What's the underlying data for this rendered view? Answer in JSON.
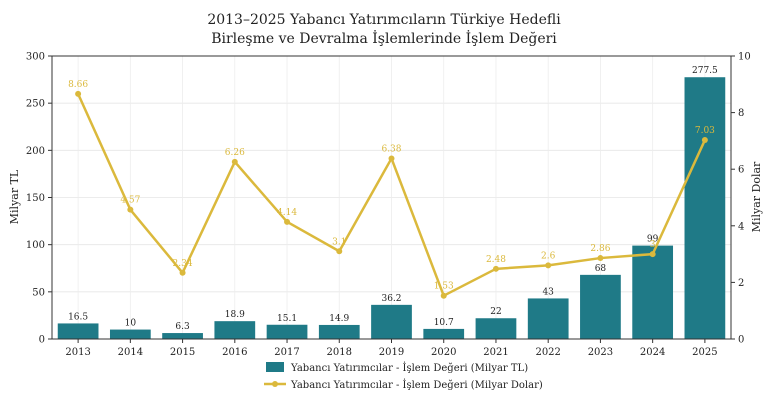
{
  "chart_data": {
    "type": "bar",
    "title_line1": "2013–2025 Yabancı Yatırımcıların Türkiye Hedefli",
    "title_line2": "Birleşme ve Devralma İşlemlerinde İşlem Değeri",
    "categories": [
      "2013",
      "2014",
      "2015",
      "2016",
      "2017",
      "2018",
      "2019",
      "2020",
      "2021",
      "2022",
      "2023",
      "2024",
      "2025"
    ],
    "series": [
      {
        "name": "Yabancı Yatırımcılar - İşlem Değeri (Milyar TL)",
        "type": "bar",
        "axis": "left",
        "color": "#1f7a87",
        "values": [
          16.5,
          10,
          6.3,
          18.9,
          15.1,
          14.9,
          36.2,
          10.7,
          22,
          43,
          68,
          99,
          277.5
        ],
        "labels": [
          "16.5",
          "10",
          "6.3",
          "18.9",
          "15.1",
          "14.9",
          "36.2",
          "10.7",
          "22",
          "43",
          "68",
          "99",
          "277.5"
        ]
      },
      {
        "name": "Yabancı Yatırımcılar - İşlem Değeri (Milyar Dolar)",
        "type": "line",
        "axis": "right",
        "color": "#dbb93c",
        "values": [
          8.66,
          4.57,
          2.34,
          6.26,
          4.14,
          3.1,
          6.38,
          1.53,
          2.48,
          2.6,
          2.86,
          3.0,
          7.03
        ],
        "labels": [
          "8.66",
          "4.57",
          "2.34",
          "6.26",
          "4.14",
          "3.1",
          "6.38",
          "1.53",
          "2.48",
          "2.6",
          "2.86",
          "3",
          "7.03"
        ]
      }
    ],
    "ylabel": "Milyar TL",
    "y2label": "Milyar Dolar",
    "ylim": [
      0,
      300
    ],
    "y2lim": [
      0,
      10
    ],
    "yticks": [
      "0",
      "50",
      "100",
      "150",
      "200",
      "250",
      "300"
    ],
    "y2ticks": [
      "0",
      "2",
      "4",
      "6",
      "8",
      "10"
    ],
    "grid": true,
    "legend_position": "bottom-center"
  }
}
